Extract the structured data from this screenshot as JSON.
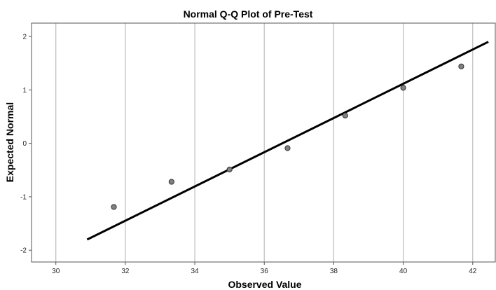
{
  "chart_data": {
    "type": "scatter",
    "title": "Normal Q-Q Plot of Pre-Test",
    "xlabel": "Observed Value",
    "ylabel": "Expected Normal",
    "xlim": [
      29.3,
      42.65
    ],
    "ylim": [
      -2.22,
      2.25
    ],
    "xticks": [
      30,
      32,
      34,
      36,
      38,
      40,
      42
    ],
    "yticks": [
      2,
      1,
      0,
      -1,
      -2
    ],
    "x_grid": true,
    "y_grid": false,
    "points": [
      {
        "x": 31.67,
        "y": -1.19
      },
      {
        "x": 33.33,
        "y": -0.72
      },
      {
        "x": 35.0,
        "y": -0.49
      },
      {
        "x": 36.67,
        "y": -0.09
      },
      {
        "x": 38.33,
        "y": 0.52
      },
      {
        "x": 40.0,
        "y": 1.04
      },
      {
        "x": 41.67,
        "y": 1.44
      }
    ],
    "reference_line": {
      "x1": 30.9,
      "y1": -1.8,
      "x2": 42.45,
      "y2": 1.9
    },
    "colors": {
      "point_fill": "#808080",
      "point_stroke": "#333333",
      "line": "#000000",
      "grid": "#bdbdbd"
    }
  }
}
